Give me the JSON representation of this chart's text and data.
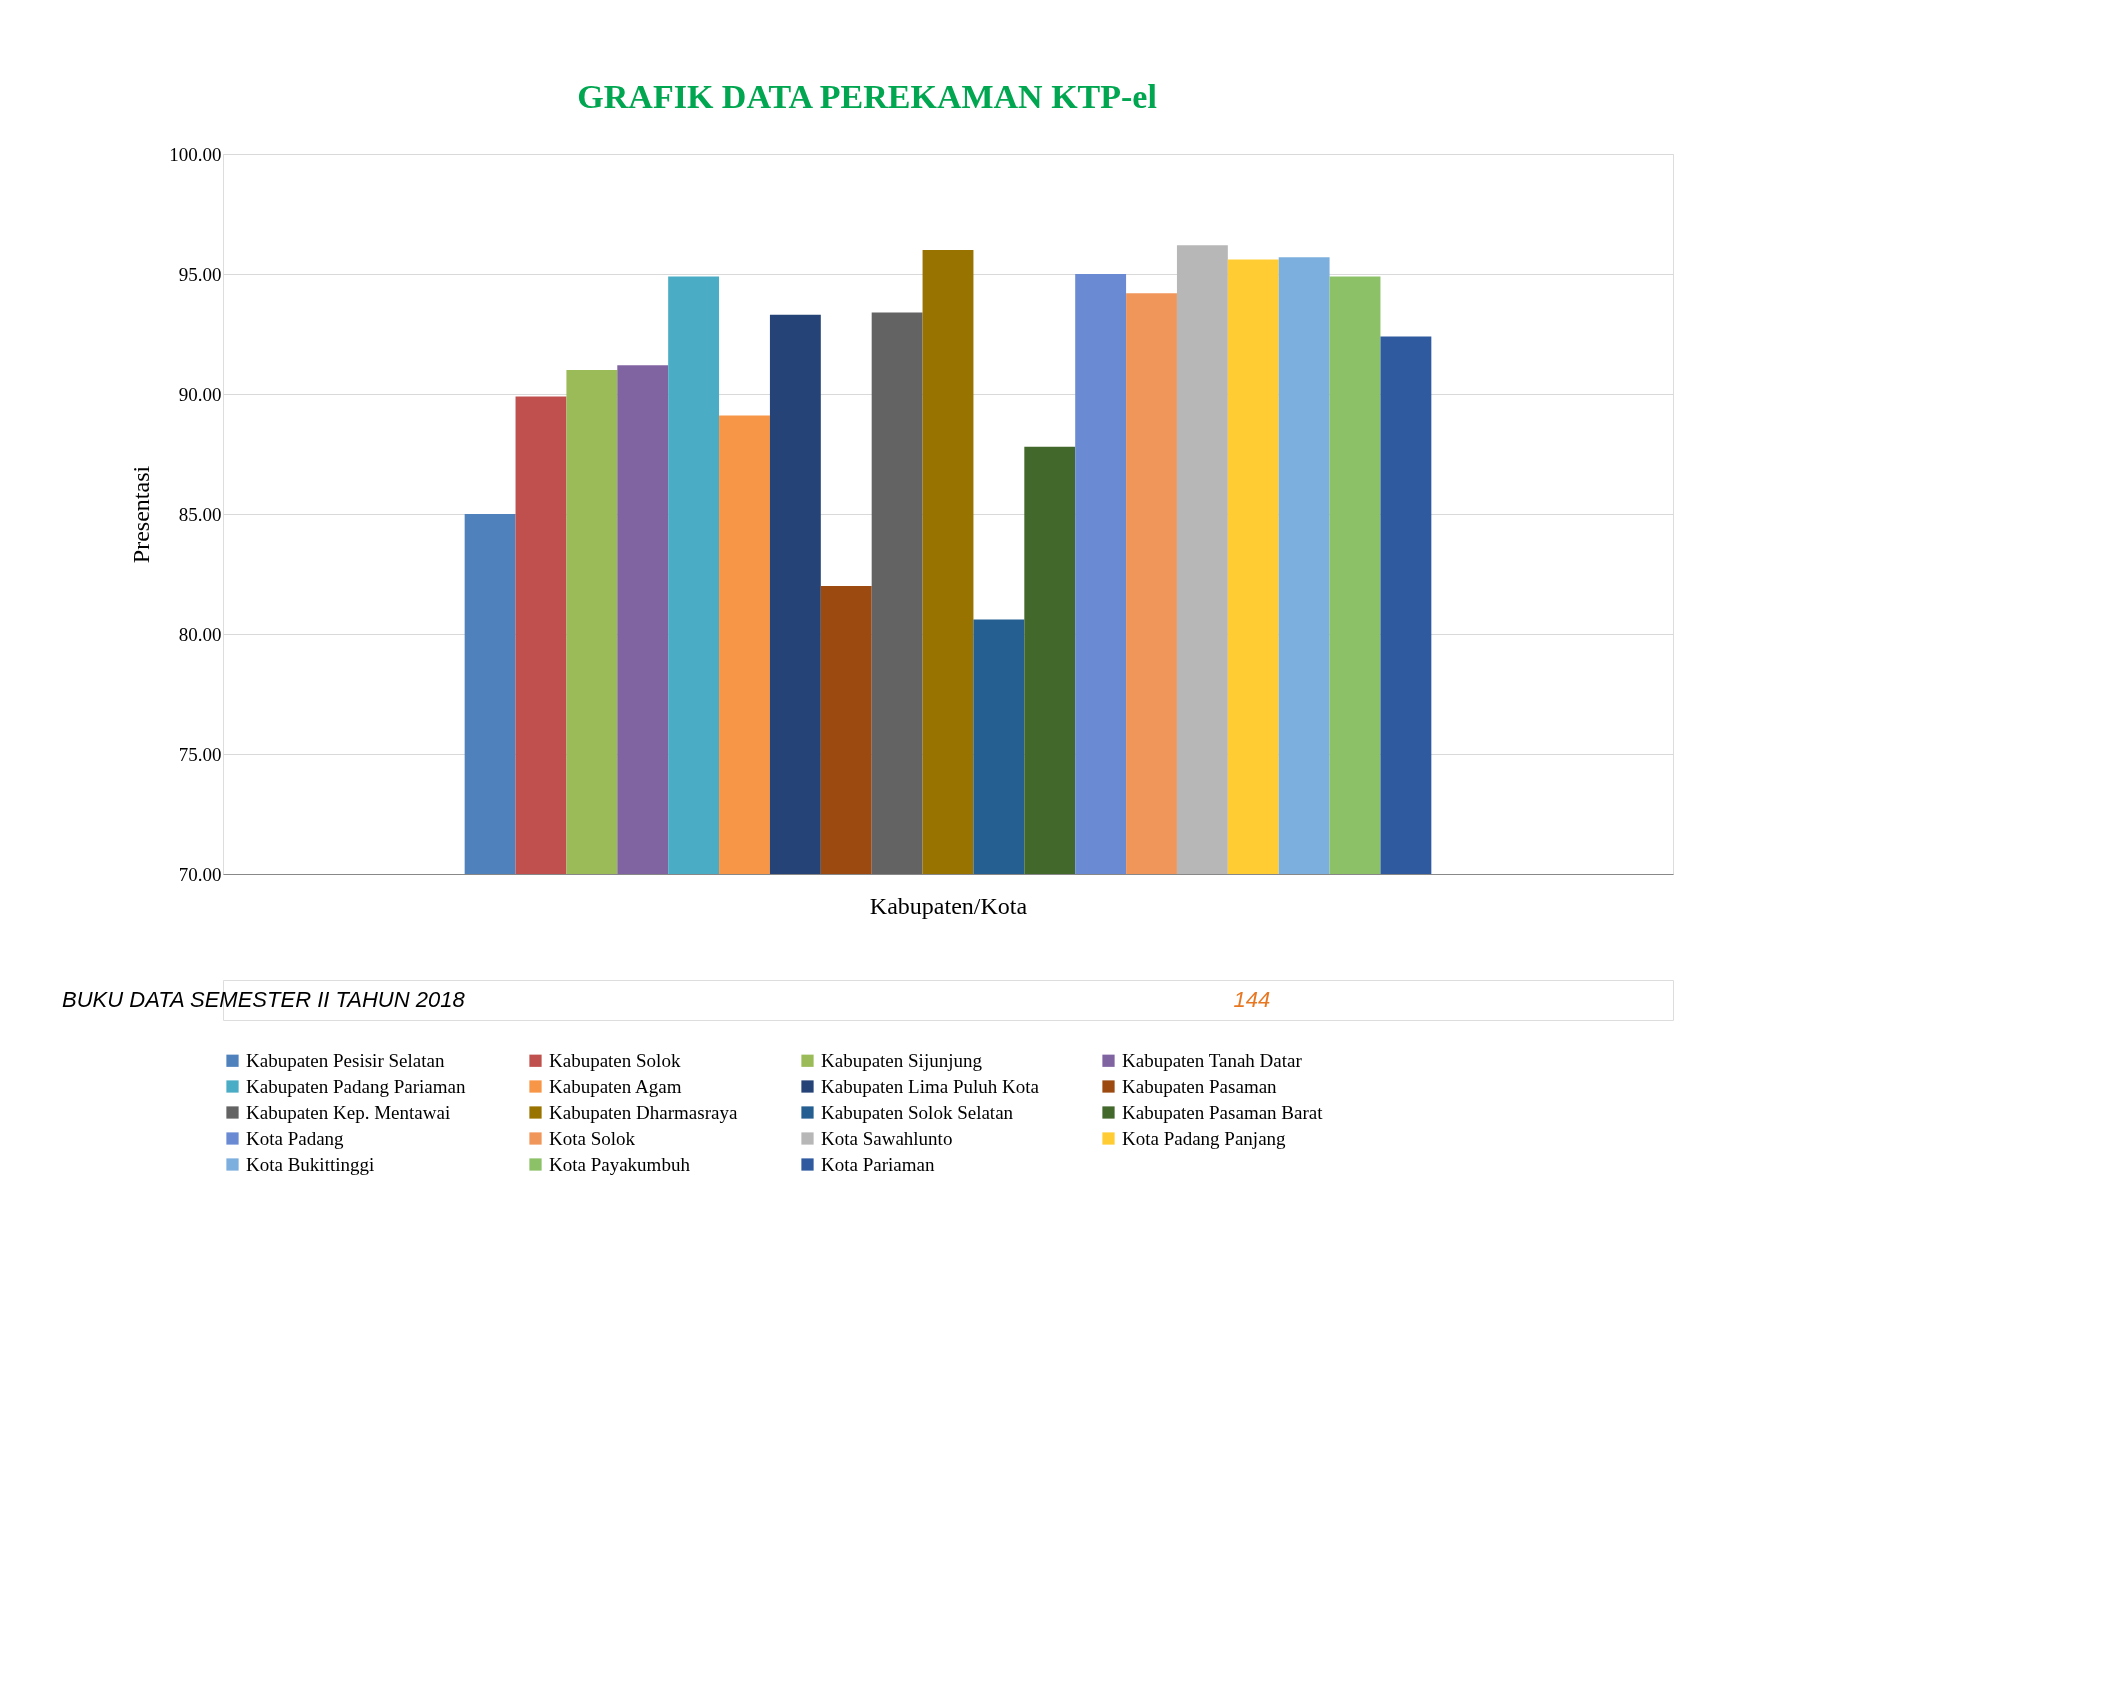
{
  "chart_data": {
    "type": "bar",
    "title": "GRAFIK DATA PEREKAMAN KTP-el",
    "xlabel": "Kabupaten/Kota",
    "ylabel": "Presentasi",
    "categories": [
      null
    ],
    "series": [
      {
        "name": "Kabupaten Pesisir Selatan",
        "color": "#4f81bd",
        "values": [
          85.0
        ]
      },
      {
        "name": "Kabupaten Solok",
        "color": "#c0504d",
        "values": [
          89.9
        ]
      },
      {
        "name": "Kabupaten Sijunjung",
        "color": "#9bbb59",
        "values": [
          91.0
        ]
      },
      {
        "name": "Kabupaten Tanah Datar",
        "color": "#8064a2",
        "values": [
          91.2
        ]
      },
      {
        "name": "Kabupaten Padang Pariaman",
        "color": "#4bacc6",
        "values": [
          94.9
        ]
      },
      {
        "name": "Kabupaten Agam",
        "color": "#f79646",
        "values": [
          89.1
        ]
      },
      {
        "name": "Kabupaten Lima Puluh Kota",
        "color": "#254377",
        "values": [
          93.3
        ]
      },
      {
        "name": "Kabupaten Pasaman",
        "color": "#9c4a10",
        "values": [
          82.0
        ]
      },
      {
        "name": "Kabupaten Kep. Mentawai",
        "color": "#636363",
        "values": [
          93.4
        ]
      },
      {
        "name": "Kabupaten Dharmasraya",
        "color": "#997300",
        "values": [
          96.0
        ]
      },
      {
        "name": "Kabupaten Solok Selatan",
        "color": "#255e91",
        "values": [
          80.6
        ]
      },
      {
        "name": "Kabupaten Pasaman Barat",
        "color": "#43682b",
        "values": [
          87.8
        ]
      },
      {
        "name": "Kota Padang",
        "color": "#6a8bd4",
        "values": [
          95.0
        ]
      },
      {
        "name": "Kota Solok",
        "color": "#f0965a",
        "values": [
          94.2
        ]
      },
      {
        "name": "Kota Sawahlunto",
        "color": "#b7b7b7",
        "values": [
          96.2
        ]
      },
      {
        "name": "Kota Padang Panjang",
        "color": "#ffcd33",
        "values": [
          95.6
        ]
      },
      {
        "name": "Kota Bukittinggi",
        "color": "#7cafdd",
        "values": [
          95.7
        ]
      },
      {
        "name": "Kota Payakumbuh",
        "color": "#8cc168",
        "values": [
          94.9
        ]
      },
      {
        "name": "Kota Pariaman",
        "color": "#2f5aa0",
        "values": [
          92.4
        ]
      }
    ],
    "ylim": [
      70,
      100
    ],
    "yticks": [
      {
        "value": 70,
        "label": "70.00"
      },
      {
        "value": 75,
        "label": "75.00"
      },
      {
        "value": 80,
        "label": "80.00"
      },
      {
        "value": 85,
        "label": "85.00"
      },
      {
        "value": 90,
        "label": "90.00"
      },
      {
        "value": 95,
        "label": "95.00"
      },
      {
        "value": 100,
        "label": "100.00"
      }
    ],
    "grid": "y",
    "legend": "bottom",
    "annotations": [
      "BUKU DATA SEMESTER II TAHUN 2018",
      "144"
    ]
  }
}
